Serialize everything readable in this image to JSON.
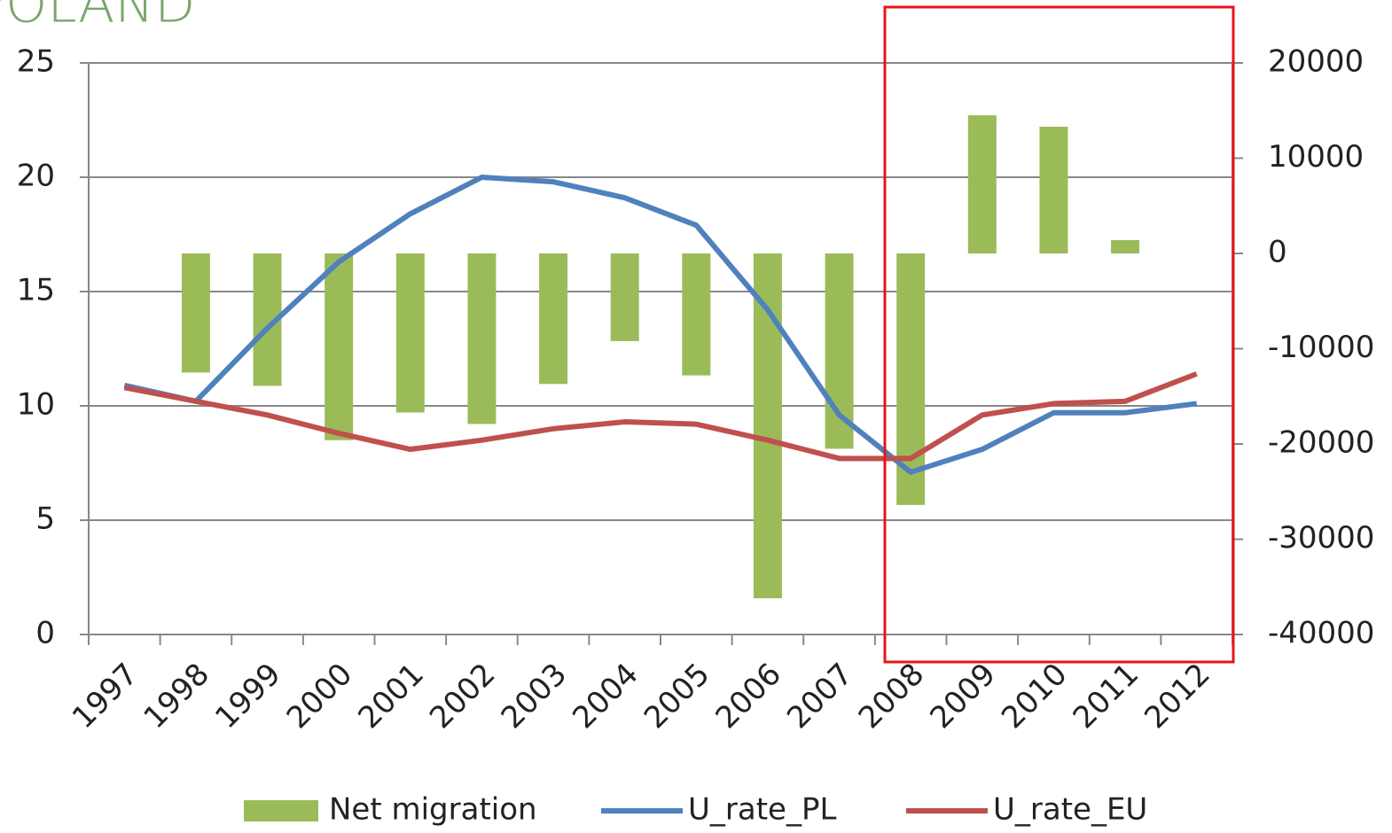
{
  "chart_data": {
    "type": "bar-line",
    "title": "POLAND",
    "categories": [
      "1997",
      "1998",
      "1999",
      "2000",
      "2001",
      "2002",
      "2003",
      "2004",
      "2005",
      "2006",
      "2007",
      "2008",
      "2009",
      "2010",
      "2011",
      "2012"
    ],
    "series": [
      {
        "name": "Net migration",
        "type": "bar",
        "axis": "y2",
        "color": "#9bbb59",
        "values": [
          null,
          -12500,
          -13900,
          -19600,
          -16700,
          -17900,
          -13700,
          -9200,
          -12800,
          -36200,
          -20500,
          -26400,
          14500,
          13300,
          1400,
          null
        ]
      },
      {
        "name": "U_rate_PL",
        "type": "line",
        "axis": "y",
        "color": "#4f81bd",
        "values": [
          10.9,
          10.2,
          13.4,
          16.3,
          18.4,
          20.0,
          19.8,
          19.1,
          17.9,
          14.2,
          9.6,
          7.1,
          8.1,
          9.7,
          9.7,
          10.1
        ]
      },
      {
        "name": "U_rate_EU",
        "type": "line",
        "axis": "y",
        "color": "#c0504d",
        "values": [
          10.8,
          10.2,
          9.6,
          8.8,
          8.1,
          8.5,
          9.0,
          9.3,
          9.2,
          8.5,
          7.7,
          7.7,
          9.6,
          10.1,
          10.2,
          11.4
        ]
      }
    ],
    "ylim": [
      0,
      25
    ],
    "yticks": [
      0,
      5,
      10,
      15,
      20,
      25
    ],
    "y2lim": [
      -40000,
      20000
    ],
    "y2ticks": [
      -40000,
      -30000,
      -20000,
      -10000,
      0,
      10000,
      20000
    ],
    "grid": true,
    "legend": "bottom"
  }
}
